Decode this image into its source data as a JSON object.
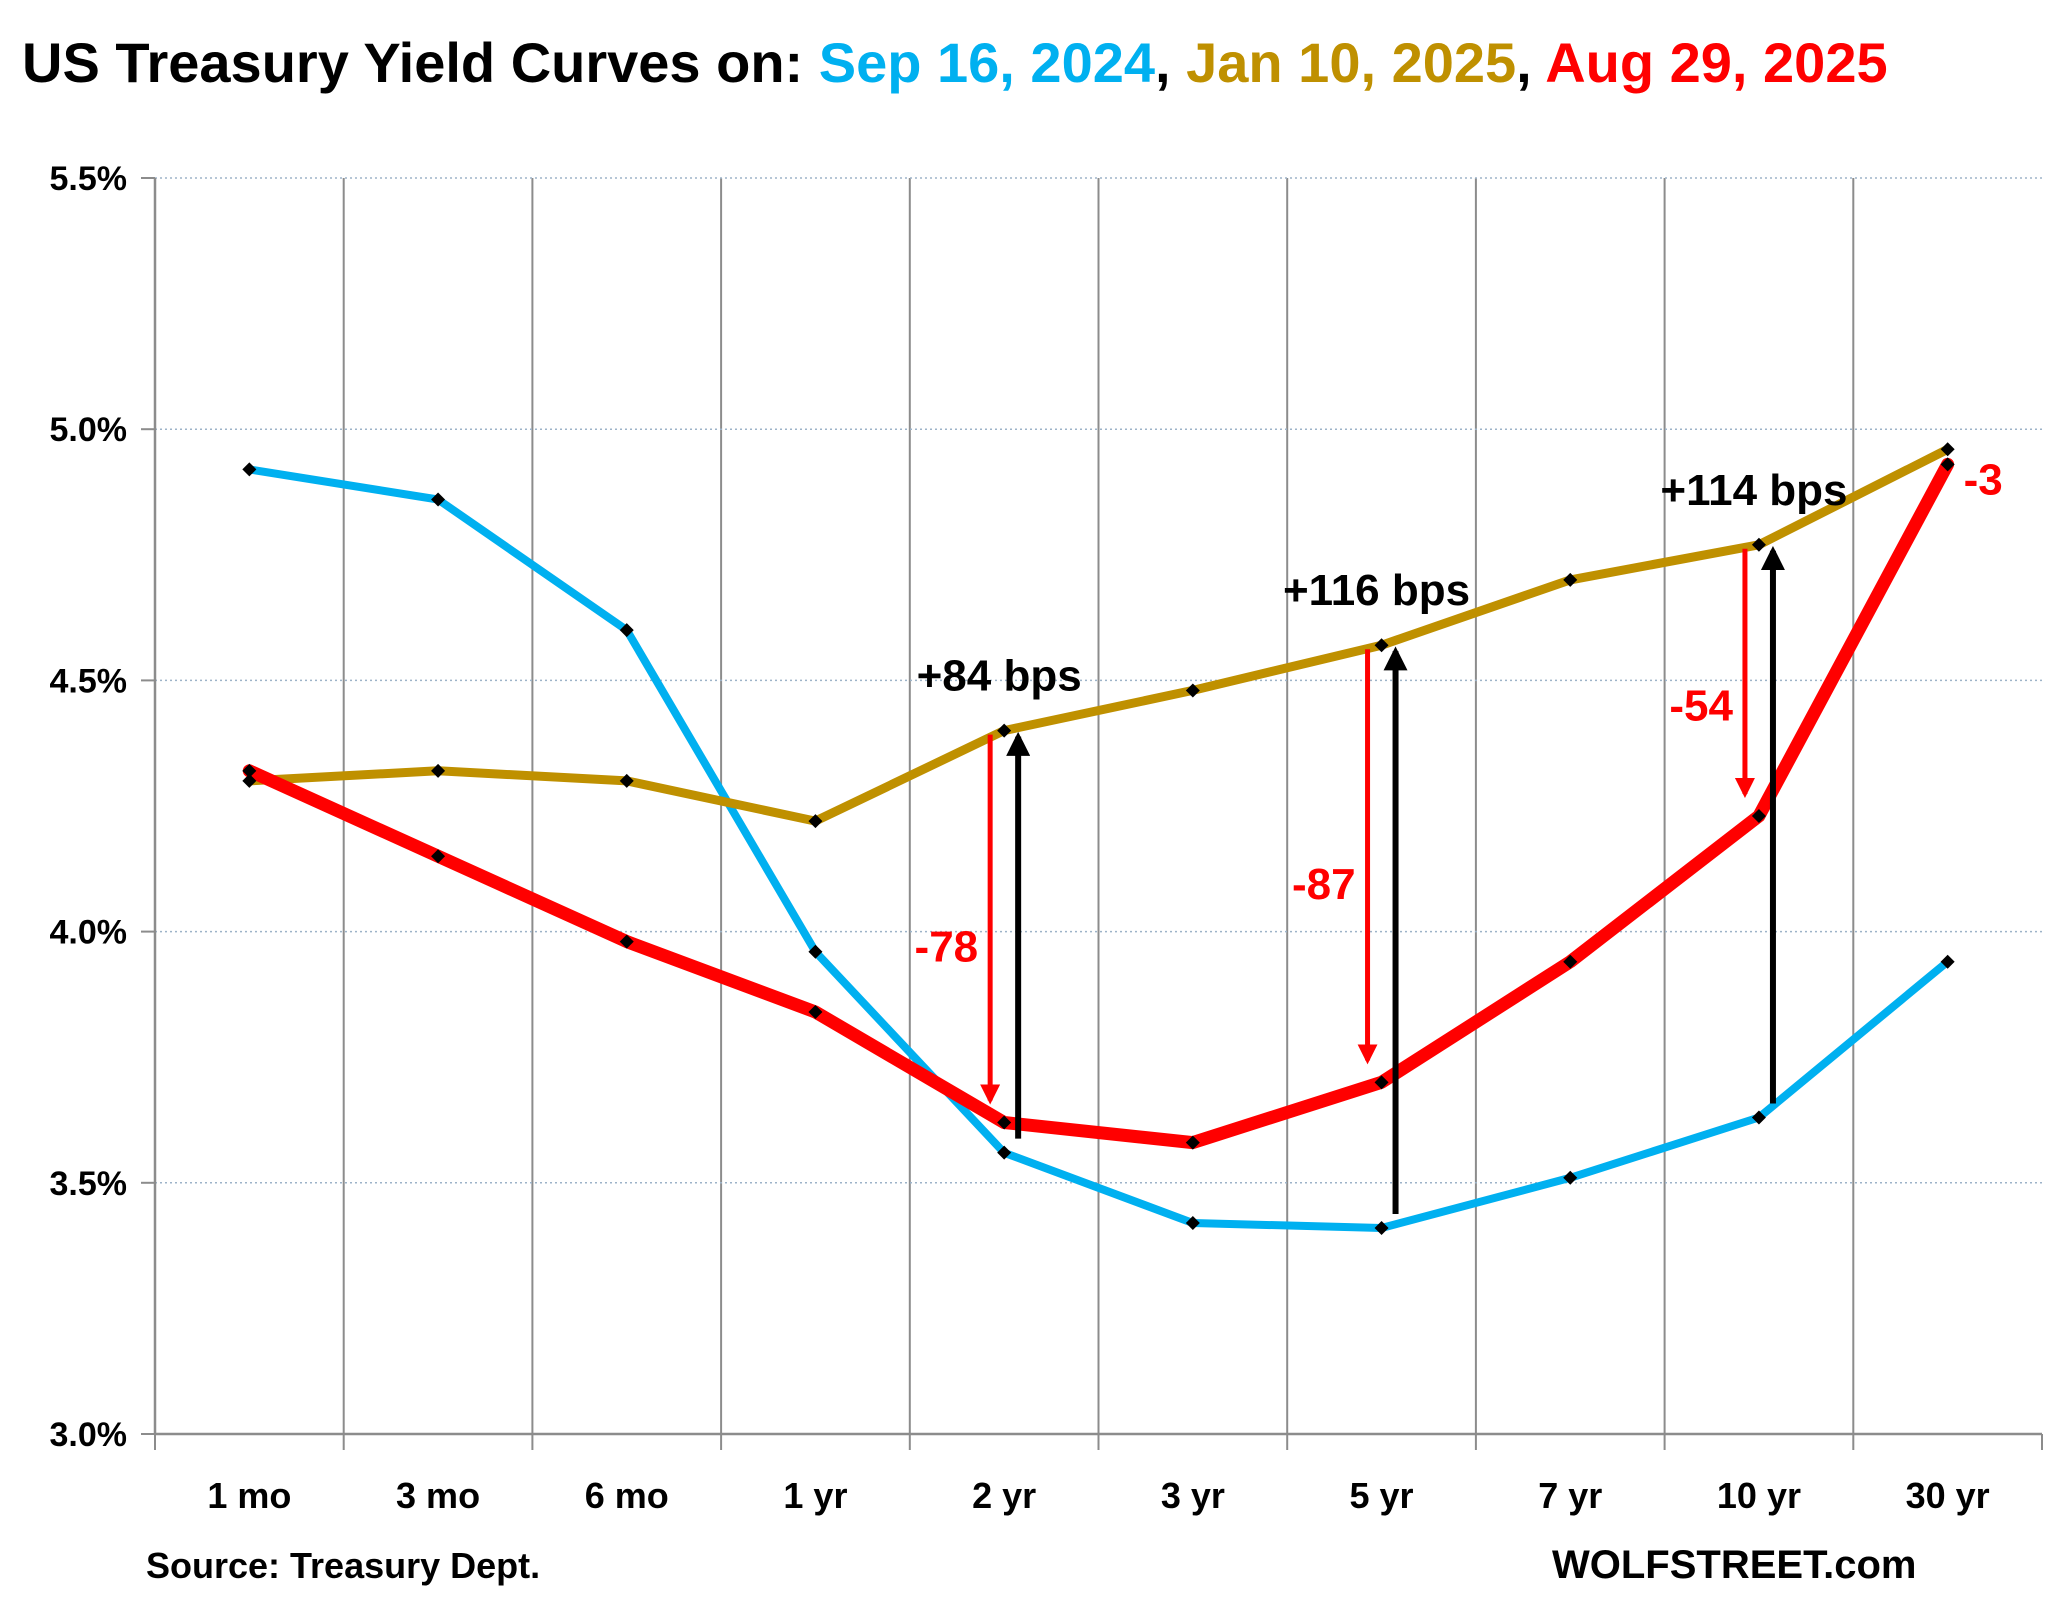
{
  "chart_data": {
    "type": "line",
    "title": {
      "prefix": "US Treasury Yield Curves on: ",
      "sep1": ", ",
      "sep2": ", "
    },
    "categories": [
      "1 mo",
      "3 mo",
      "6 mo",
      "1 yr",
      "2 yr",
      "3 yr",
      "5 yr",
      "7 yr",
      "10 yr",
      "30 yr"
    ],
    "y_tick_labels": [
      "3.0%",
      "3.5%",
      "4.0%",
      "4.5%",
      "5.0%",
      "5.5%"
    ],
    "ylim": [
      3.0,
      5.5
    ],
    "y_ticks": [
      3.0,
      3.5,
      4.0,
      4.5,
      5.0,
      5.5
    ],
    "grid": true,
    "series": [
      {
        "name": "Sep 16, 2024",
        "color": "#00b0f0",
        "values": [
          4.92,
          4.86,
          4.6,
          3.96,
          3.56,
          3.42,
          3.41,
          3.51,
          3.63,
          3.94
        ]
      },
      {
        "name": "Jan 10, 2025",
        "color": "#bf9000",
        "values": [
          4.3,
          4.32,
          4.3,
          4.22,
          4.4,
          4.48,
          4.57,
          4.7,
          4.77,
          4.96
        ]
      },
      {
        "name": "Aug 29, 2025",
        "color": "#ff0000",
        "values": [
          4.32,
          4.15,
          3.98,
          3.84,
          3.62,
          3.58,
          3.7,
          3.94,
          4.23,
          4.93
        ]
      }
    ],
    "annotations": {
      "increases": [
        {
          "category": "2 yr",
          "from": 3.56,
          "to": 4.4,
          "label": "+84 bps",
          "color": "#000000"
        },
        {
          "category": "5 yr",
          "from": 3.41,
          "to": 4.57,
          "label": "+116 bps",
          "color": "#000000"
        },
        {
          "category": "10 yr",
          "from": 3.63,
          "to": 4.77,
          "label": "+114 bps",
          "color": "#000000"
        }
      ],
      "decreases": [
        {
          "category": "2 yr",
          "from": 4.4,
          "to": 3.62,
          "label": "-78",
          "color": "#ff0000"
        },
        {
          "category": "5 yr",
          "from": 4.57,
          "to": 3.7,
          "label": "-87",
          "color": "#ff0000"
        },
        {
          "category": "10 yr",
          "from": 4.77,
          "to": 4.23,
          "label": "-54",
          "color": "#ff0000"
        },
        {
          "category": "30 yr",
          "from": 4.96,
          "to": 4.93,
          "label": "-3",
          "color": "#ff0000"
        }
      ]
    },
    "source": "Source: Treasury Dept.",
    "credit": "WOLFSTREET.com"
  }
}
